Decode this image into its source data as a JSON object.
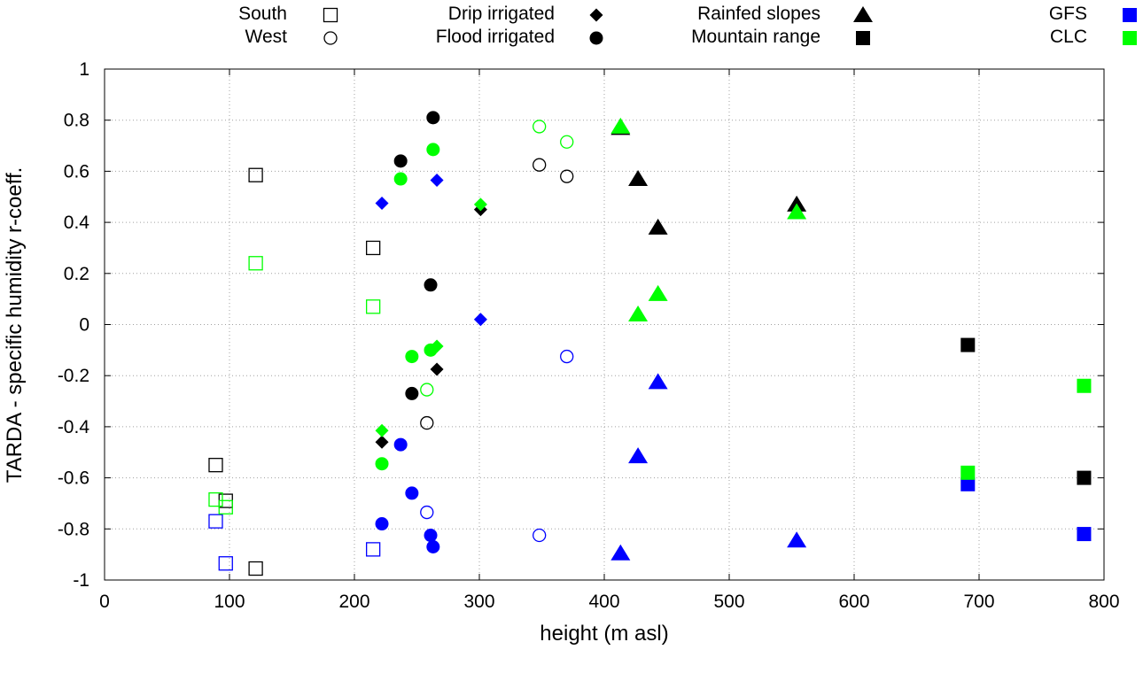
{
  "chart_data": {
    "type": "scatter",
    "title": "",
    "xlabel": "height (m asl)",
    "ylabel": "TARDA - specific humidity r-coeff.",
    "xlim": [
      0,
      800
    ],
    "ylim": [
      -1,
      1
    ],
    "xticks": [
      0,
      100,
      200,
      300,
      400,
      500,
      600,
      700,
      800
    ],
    "yticks": [
      -1,
      -0.8,
      -0.6,
      -0.4,
      -0.2,
      0,
      0.2,
      0.4,
      0.6,
      0.8,
      1
    ],
    "ytick_labels": [
      "-1",
      "-0.8",
      "-0.6",
      "-0.4",
      "-0.2",
      "0",
      "0.2",
      "0.4",
      "0.6",
      "0.8",
      "1"
    ],
    "grid": true,
    "colors": {
      "TARDA": "#000000",
      "GFS": "#0000ff",
      "CLC": "#00ff00"
    },
    "legend": {
      "placement": "top",
      "regions": [
        {
          "label": "South",
          "marker": "square-open"
        },
        {
          "label": "West",
          "marker": "circle-open"
        },
        {
          "label": "Drip irrigated",
          "marker": "diamond"
        },
        {
          "label": "Flood irrigated",
          "marker": "circle"
        },
        {
          "label": "Rainfed slopes",
          "marker": "triangle"
        },
        {
          "label": "Mountain range",
          "marker": "square"
        }
      ],
      "sources": [
        {
          "label": "GFS",
          "color": "#0000ff"
        },
        {
          "label": "CLC",
          "color": "#00ff00"
        }
      ]
    },
    "series": [
      {
        "name": "South - black",
        "marker": "square-open",
        "color": "#000000",
        "points": [
          [
            89,
            -0.55
          ],
          [
            97,
            -0.69
          ],
          [
            121,
            0.585
          ],
          [
            121,
            -0.955
          ],
          [
            215,
            0.3
          ]
        ]
      },
      {
        "name": "South - GFS",
        "marker": "square-open",
        "color": "#0000ff",
        "points": [
          [
            89,
            -0.77
          ],
          [
            97,
            -0.935
          ],
          [
            215,
            -0.88
          ]
        ]
      },
      {
        "name": "South - CLC",
        "marker": "square-open",
        "color": "#00ff00",
        "points": [
          [
            89,
            -0.685
          ],
          [
            97,
            -0.715
          ],
          [
            121,
            0.24
          ],
          [
            215,
            0.07
          ]
        ]
      },
      {
        "name": "West - black",
        "marker": "circle-open",
        "color": "#000000",
        "points": [
          [
            258,
            -0.385
          ],
          [
            348,
            0.625
          ],
          [
            370,
            0.58
          ]
        ]
      },
      {
        "name": "West - GFS",
        "marker": "circle-open",
        "color": "#0000ff",
        "points": [
          [
            258,
            -0.735
          ],
          [
            348,
            -0.825
          ],
          [
            370,
            -0.125
          ]
        ]
      },
      {
        "name": "West - CLC",
        "marker": "circle-open",
        "color": "#00ff00",
        "points": [
          [
            258,
            -0.255
          ],
          [
            348,
            0.775
          ],
          [
            370,
            0.715
          ]
        ]
      },
      {
        "name": "Drip - black",
        "marker": "diamond",
        "color": "#000000",
        "points": [
          [
            222,
            -0.46
          ],
          [
            266,
            -0.175
          ],
          [
            301,
            0.45
          ]
        ]
      },
      {
        "name": "Drip - GFS",
        "marker": "diamond",
        "color": "#0000ff",
        "points": [
          [
            222,
            0.475
          ],
          [
            266,
            0.565
          ],
          [
            301,
            0.02
          ]
        ]
      },
      {
        "name": "Drip - CLC",
        "marker": "diamond",
        "color": "#00ff00",
        "points": [
          [
            222,
            -0.415
          ],
          [
            266,
            -0.085
          ],
          [
            301,
            0.47
          ]
        ]
      },
      {
        "name": "Flood - black",
        "marker": "circle",
        "color": "#000000",
        "points": [
          [
            237,
            0.64
          ],
          [
            246,
            -0.27
          ],
          [
            261,
            0.155
          ],
          [
            263,
            0.81
          ]
        ]
      },
      {
        "name": "Flood - GFS",
        "marker": "circle",
        "color": "#0000ff",
        "points": [
          [
            222,
            -0.78
          ],
          [
            237,
            -0.47
          ],
          [
            246,
            -0.66
          ],
          [
            261,
            -0.825
          ],
          [
            263,
            -0.87
          ]
        ]
      },
      {
        "name": "Flood - CLC",
        "marker": "circle",
        "color": "#00ff00",
        "points": [
          [
            222,
            -0.545
          ],
          [
            237,
            0.57
          ],
          [
            246,
            -0.125
          ],
          [
            261,
            -0.1
          ],
          [
            263,
            0.685
          ]
        ]
      },
      {
        "name": "Rainfed - black",
        "marker": "triangle",
        "color": "#000000",
        "points": [
          [
            413,
            0.77
          ],
          [
            427,
            0.57
          ],
          [
            443,
            0.38
          ],
          [
            554,
            0.47
          ]
        ]
      },
      {
        "name": "Rainfed - GFS",
        "marker": "triangle",
        "color": "#0000ff",
        "points": [
          [
            413,
            -0.895
          ],
          [
            427,
            -0.515
          ],
          [
            443,
            -0.225
          ],
          [
            554,
            -0.845
          ]
        ]
      },
      {
        "name": "Rainfed - CLC",
        "marker": "triangle",
        "color": "#00ff00",
        "points": [
          [
            413,
            0.775
          ],
          [
            427,
            0.04
          ],
          [
            443,
            0.12
          ],
          [
            554,
            0.44
          ]
        ]
      },
      {
        "name": "Mountain - black",
        "marker": "square",
        "color": "#000000",
        "points": [
          [
            691,
            -0.08
          ],
          [
            784,
            -0.6
          ]
        ]
      },
      {
        "name": "Mountain - GFS",
        "marker": "square",
        "color": "#0000ff",
        "points": [
          [
            691,
            -0.625
          ],
          [
            784,
            -0.82
          ]
        ]
      },
      {
        "name": "Mountain - CLC",
        "marker": "square",
        "color": "#00ff00",
        "points": [
          [
            691,
            -0.58
          ],
          [
            784,
            -0.24
          ]
        ]
      }
    ]
  }
}
